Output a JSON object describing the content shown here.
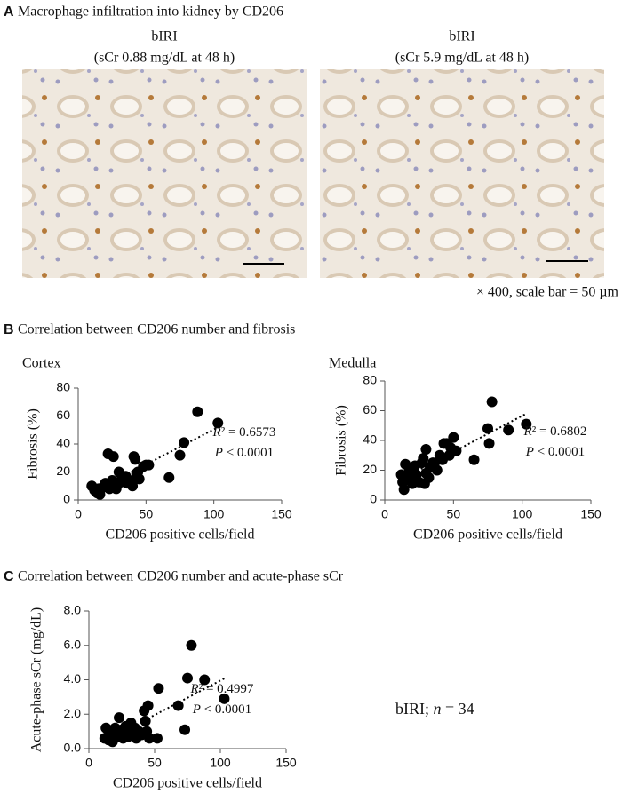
{
  "panel_a": {
    "label": "A",
    "title": "Macrophage infiltration into kidney by CD206",
    "images": [
      {
        "caption_1": "bIRI",
        "caption_2": "(sCr 0.88 mg/dL at 48 h)"
      },
      {
        "caption_1": "bIRI",
        "caption_2": "(sCr 5.9 mg/dL at 48 h)"
      }
    ],
    "scale_note": "× 400, scale bar = 50 µm"
  },
  "panel_b": {
    "label": "B",
    "title": "Correlation between CD206 number and fibrosis"
  },
  "panel_c": {
    "label": "C",
    "title": "Correlation between CD206 number and  acute-phase sCr"
  },
  "note": {
    "part_1": "bIRI; ",
    "italic": "n",
    "part_2": " = 34"
  },
  "chart_data": [
    {
      "type": "scatter",
      "subtitle": "Cortex",
      "x_label": "CD206 positive cells/field",
      "y_label": "Fibrosis (%)",
      "xlim": [
        0,
        150
      ],
      "xticks": [
        0,
        50,
        100,
        150
      ],
      "ylim": [
        0,
        80
      ],
      "yticks": [
        0,
        20,
        40,
        60,
        80
      ],
      "color": "#000000",
      "trendline": true,
      "annotations": [
        {
          "italic": "R",
          "text": "² = 0.6573"
        },
        {
          "italic": "P",
          "text": " < 0.0001"
        }
      ],
      "x": [
        10,
        12,
        14,
        15,
        16,
        18,
        20,
        22,
        23,
        25,
        26,
        27,
        28,
        30,
        30,
        32,
        33,
        35,
        36,
        38,
        40,
        41,
        42,
        43,
        44,
        45,
        48,
        50,
        52,
        67,
        75,
        78,
        88,
        103
      ],
      "y": [
        10,
        7,
        5,
        8,
        4,
        9,
        12,
        33,
        8,
        14,
        31,
        10,
        8,
        12,
        20,
        15,
        13,
        17,
        12,
        14,
        10,
        31,
        29,
        19,
        20,
        15,
        24,
        25,
        25,
        16,
        32,
        41,
        63,
        55
      ]
    },
    {
      "type": "scatter",
      "subtitle": "Medulla",
      "x_label": "CD206 positive cells/field",
      "y_label": "Fibrosis (%)",
      "xlim": [
        0,
        150
      ],
      "xticks": [
        0,
        50,
        100,
        150
      ],
      "ylim": [
        0,
        80
      ],
      "yticks": [
        0,
        20,
        40,
        60,
        80
      ],
      "color": "#000000",
      "trendline": true,
      "annotations": [
        {
          "italic": "R",
          "text": "² = 0.6802"
        },
        {
          "italic": "P",
          "text": " < 0.0001"
        }
      ],
      "x": [
        12,
        13,
        14,
        15,
        17,
        18,
        20,
        22,
        23,
        25,
        27,
        28,
        30,
        30,
        32,
        33,
        35,
        36,
        38,
        40,
        42,
        43,
        45,
        47,
        48,
        50,
        52,
        65,
        75,
        76,
        78,
        90,
        103,
        29
      ],
      "y": [
        17,
        12,
        7,
        24,
        16,
        20,
        11,
        23,
        17,
        12,
        25,
        28,
        34,
        18,
        15,
        22,
        25,
        24,
        20,
        30,
        27,
        38,
        38,
        30,
        35,
        42,
        33,
        27,
        48,
        38,
        66,
        47,
        51,
        11
      ]
    },
    {
      "type": "scatter",
      "x_label": "CD206 positive cells/field",
      "y_label": "Acute-phase sCr (mg/dL)",
      "xlim": [
        0,
        150
      ],
      "xticks": [
        0,
        50,
        100,
        150
      ],
      "ylim": [
        0,
        8
      ],
      "yticks": [
        {
          "value": 0,
          "label": "0.0"
        },
        {
          "value": 2,
          "label": "2.0"
        },
        {
          "value": 4,
          "label": "4.0"
        },
        {
          "value": 6,
          "label": "6.0"
        },
        {
          "value": 8,
          "label": "8.0"
        }
      ],
      "color": "#000000",
      "trendline": true,
      "annotations": [
        {
          "italic": "R",
          "text": "² = 0.4997"
        },
        {
          "italic": "P",
          "text": " < 0.0001"
        }
      ],
      "x": [
        12,
        13,
        15,
        16,
        18,
        20,
        22,
        23,
        24,
        25,
        26,
        28,
        30,
        30,
        32,
        33,
        35,
        36,
        38,
        40,
        42,
        43,
        44,
        45,
        46,
        52,
        53,
        68,
        73,
        75,
        78,
        88,
        103,
        27
      ],
      "y": [
        0.6,
        1.2,
        0.5,
        0.9,
        0.4,
        1.2,
        0.7,
        1.8,
        1.0,
        1.1,
        0.6,
        1.3,
        1.0,
        0.7,
        1.5,
        0.8,
        1.2,
        0.6,
        1.0,
        0.8,
        2.2,
        1.6,
        1.0,
        2.5,
        0.6,
        0.6,
        3.5,
        2.5,
        1.1,
        4.1,
        6.0,
        4.0,
        2.9,
        1.0
      ]
    }
  ]
}
